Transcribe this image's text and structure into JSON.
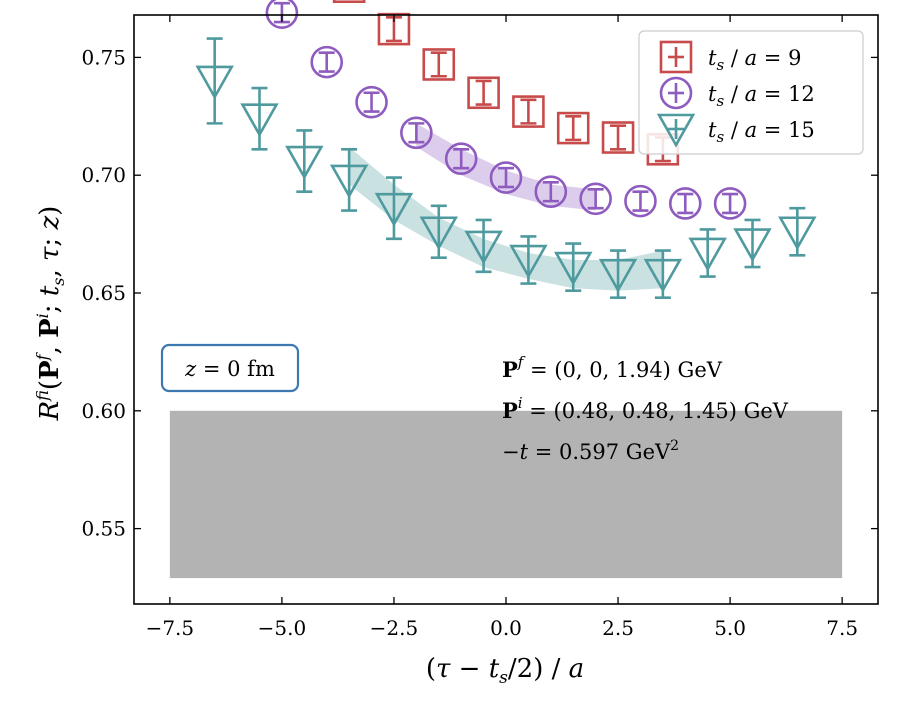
{
  "chart_data": {
    "type": "scatter",
    "title": "",
    "xlabel": "(τ − t_s/2) / a",
    "ylabel": "R^{fi}(P^f, P^i; t_s, τ; z)",
    "xlim": [
      -8.3,
      8.3
    ],
    "ylim": [
      0.518,
      0.768
    ],
    "xticks": [
      -7.5,
      -5.0,
      -2.5,
      0.0,
      2.5,
      5.0,
      7.5
    ],
    "xtick_labels": [
      "−7.5",
      "−5.0",
      "−2.5",
      "0.0",
      "2.5",
      "5.0",
      "7.5"
    ],
    "yticks": [
      0.55,
      0.6,
      0.65,
      0.7,
      0.75
    ],
    "ytick_labels": [
      "0.55",
      "0.60",
      "0.65",
      "0.70",
      "0.75"
    ],
    "legend_position": "top-right",
    "series": [
      {
        "name": "t_s / a = 9",
        "legend_label": "t_s / a = 9",
        "marker": "square",
        "color": "#c84b4b",
        "x": [
          -3.5,
          -2.5,
          -1.5,
          -0.5,
          0.5,
          1.5,
          2.5,
          3.5
        ],
        "y": [
          0.78,
          0.762,
          0.747,
          0.735,
          0.727,
          0.72,
          0.716,
          0.711
        ],
        "err": [
          0.005,
          0.005,
          0.005,
          0.005,
          0.005,
          0.005,
          0.005,
          0.005
        ]
      },
      {
        "name": "t_s / a = 12",
        "legend_label": "t_s / a = 12",
        "marker": "circle",
        "color": "#8e5bbf",
        "x": [
          -5.0,
          -4.0,
          -3.0,
          -2.0,
          -1.0,
          0.0,
          1.0,
          2.0,
          3.0,
          4.0,
          5.0
        ],
        "y": [
          0.769,
          0.748,
          0.731,
          0.718,
          0.707,
          0.699,
          0.693,
          0.69,
          0.689,
          0.688,
          0.688
        ],
        "err": [
          0.004,
          0.004,
          0.004,
          0.004,
          0.004,
          0.004,
          0.004,
          0.004,
          0.004,
          0.004,
          0.004
        ]
      },
      {
        "name": "t_s / a = 15",
        "legend_label": "t_s / a = 15",
        "marker": "triangle-down",
        "color": "#4f9a9f",
        "x": [
          -6.5,
          -5.5,
          -4.5,
          -3.5,
          -2.5,
          -1.5,
          -0.5,
          0.5,
          1.5,
          2.5,
          3.5,
          4.5,
          5.5,
          6.5
        ],
        "y": [
          0.74,
          0.724,
          0.706,
          0.698,
          0.686,
          0.676,
          0.67,
          0.664,
          0.661,
          0.658,
          0.658,
          0.667,
          0.671,
          0.676
        ],
        "err": [
          0.018,
          0.013,
          0.013,
          0.013,
          0.013,
          0.011,
          0.011,
          0.01,
          0.01,
          0.01,
          0.01,
          0.01,
          0.01,
          0.01
        ]
      }
    ],
    "bands": [
      {
        "series": "t_s / a = 12",
        "color": "#8e5bbf",
        "x": [
          -2.0,
          -1.0,
          0.0,
          1.0,
          2.0
        ],
        "lower": [
          0.712,
          0.7,
          0.692,
          0.687,
          0.685
        ],
        "upper": [
          0.722,
          0.711,
          0.702,
          0.696,
          0.694
        ]
      },
      {
        "series": "t_s / a = 15",
        "color": "#4f9a9f",
        "x": [
          -3.5,
          -2.5,
          -1.5,
          -0.5,
          0.5,
          1.5,
          2.5,
          3.5
        ],
        "lower": [
          0.696,
          0.681,
          0.67,
          0.661,
          0.656,
          0.652,
          0.651,
          0.652
        ],
        "upper": [
          0.712,
          0.696,
          0.682,
          0.673,
          0.667,
          0.664,
          0.664,
          0.668
        ]
      }
    ],
    "gray_band": {
      "x": [
        -7.5,
        7.5
      ],
      "y": [
        0.529,
        0.6
      ],
      "color": "#b3b3b3"
    },
    "annotations": {
      "z_box": "z = 0 fm",
      "pf": "P^f = (0, 0, 1.94) GeV",
      "pi": "P^i = (0.48, 0.48, 1.45) GeV",
      "t": "−t = 0.597 GeV²"
    }
  }
}
